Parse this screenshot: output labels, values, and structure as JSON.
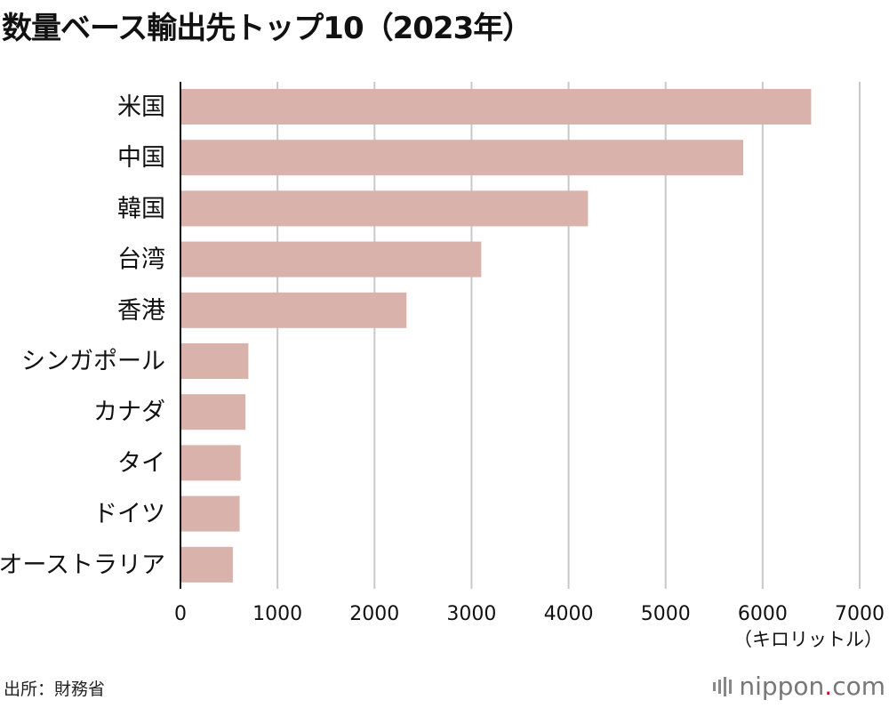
{
  "title": "数量ベース輸出先トップ10（2023年）",
  "source": "出所：財務省",
  "logo": {
    "name": "nippon",
    "dot": ".",
    "tld": "com"
  },
  "colors": {
    "bar": "#d9b3ab",
    "grid": "#c8c8c8",
    "axis": "#111111",
    "text": "#111111"
  },
  "chart_data": {
    "type": "bar",
    "orientation": "horizontal",
    "categories": [
      "米国",
      "中国",
      "韓国",
      "台湾",
      "香港",
      "シンガポール",
      "カナダ",
      "タイ",
      "ドイツ",
      "オーストラリア"
    ],
    "values": [
      6500,
      5800,
      4200,
      3100,
      2330,
      700,
      670,
      620,
      610,
      540
    ],
    "xlim": [
      0,
      7000
    ],
    "xticks": [
      "0",
      "1000",
      "2000",
      "3000",
      "4000",
      "5000",
      "6000",
      "7000"
    ],
    "xunit": "（キロリットル）",
    "grid": true
  }
}
